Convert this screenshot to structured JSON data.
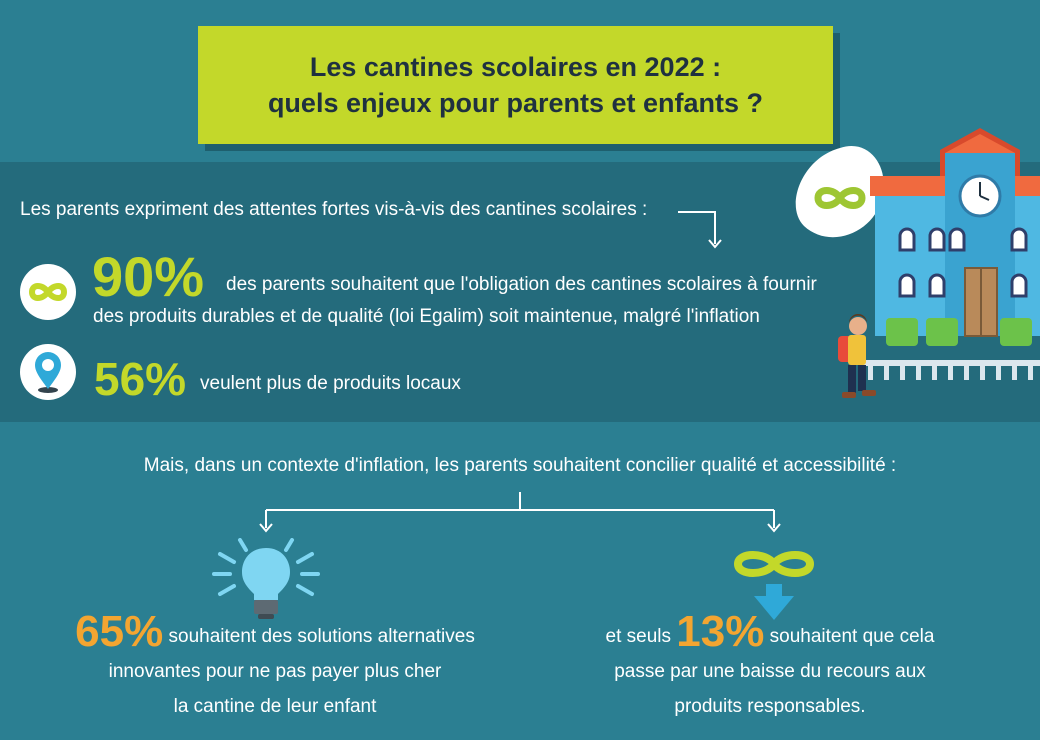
{
  "title": {
    "line1": "Les cantines scolaires en 2022 :",
    "line2": "quels enjeux pour parents et enfants ?"
  },
  "intro": "Les parents expriment des attentes fortes vis-à-vis des cantines scolaires :",
  "stat1": {
    "value": "90%",
    "text_line1": "des parents souhaitent que l'obligation des cantines scolaires à fournir",
    "text_line2": "des produits durables et de qualité (loi Egalim) soit maintenue, malgré l'inflation",
    "icon": "infinity-icon"
  },
  "stat2": {
    "value": "56%",
    "text": "veulent plus de produits locaux",
    "icon": "location-pin-icon"
  },
  "context": "Mais, dans un contexte d'inflation, les parents souhaitent concilier qualité et accessibilité :",
  "stat3": {
    "value": "65%",
    "text_line1": "souhaitent des solutions alternatives",
    "text_line2": "innovantes pour ne pas payer plus cher",
    "text_line3": "la cantine de leur enfant",
    "icon": "lightbulb-icon"
  },
  "stat4": {
    "prefix": "et seuls",
    "value": "13%",
    "text_line1": "souhaitent que cela",
    "text_line2": "passe par une baisse du recours aux",
    "text_line3": "produits responsables.",
    "icon": "infinity-down-arrow-icon"
  },
  "colors": {
    "background": "#2b7f92",
    "band": "#246b7c",
    "lime": "#c3d82a",
    "orange": "#f3a531",
    "title_text": "#1f3140"
  }
}
